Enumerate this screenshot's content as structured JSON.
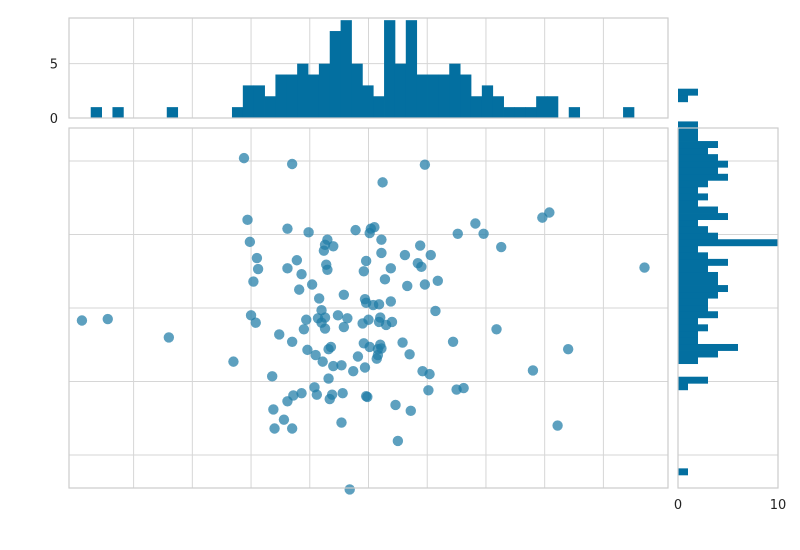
{
  "chart_data": {
    "type": "scatter",
    "title": "",
    "xlabel": "",
    "ylabel": "",
    "grid": true,
    "marginal_histograms": true,
    "colors": {
      "points": "#1f7ba6",
      "bars": "#036fa0",
      "grid": "#d6d6d6",
      "frame": "#cccccc"
    },
    "xlim": [
      -2.55,
      2.55
    ],
    "ylim": [
      -2.45,
      2.45
    ],
    "xticks": [
      -2.0,
      -1.5,
      -1.0,
      -0.5,
      0.0,
      0.5,
      1.0,
      1.5,
      2.0
    ],
    "yticks": [
      -2.0,
      -1.0,
      0.0,
      1.0,
      2.0
    ],
    "points": [
      [
        -2.44,
        -0.17
      ],
      [
        -2.22,
        -0.15
      ],
      [
        -1.7,
        -0.4
      ],
      [
        -1.15,
        -0.73
      ],
      [
        -1.06,
        2.04
      ],
      [
        -1.03,
        1.2
      ],
      [
        -1.01,
        0.9
      ],
      [
        -0.95,
        0.68
      ],
      [
        -0.94,
        0.53
      ],
      [
        -0.98,
        0.36
      ],
      [
        -1.0,
        -0.1
      ],
      [
        -0.96,
        -0.2
      ],
      [
        -0.82,
        -0.93
      ],
      [
        -0.81,
        -1.38
      ],
      [
        -0.8,
        -1.64
      ],
      [
        -0.76,
        -0.36
      ],
      [
        -0.72,
        -1.52
      ],
      [
        -0.69,
        1.08
      ],
      [
        -0.69,
        0.54
      ],
      [
        -0.69,
        -1.27
      ],
      [
        -0.65,
        1.96
      ],
      [
        -0.65,
        -0.46
      ],
      [
        -0.65,
        -1.64
      ],
      [
        -0.64,
        -1.19
      ],
      [
        -0.61,
        0.65
      ],
      [
        -0.59,
        0.25
      ],
      [
        -0.57,
        0.46
      ],
      [
        -0.57,
        -1.16
      ],
      [
        -0.55,
        -0.29
      ],
      [
        -0.53,
        -0.16
      ],
      [
        -0.52,
        -0.57
      ],
      [
        -0.51,
        1.03
      ],
      [
        -0.48,
        0.32
      ],
      [
        -0.46,
        -1.08
      ],
      [
        -0.45,
        -0.64
      ],
      [
        -0.44,
        -1.18
      ],
      [
        -0.43,
        -0.14
      ],
      [
        -0.42,
        0.13
      ],
      [
        -0.4,
        -0.03
      ],
      [
        -0.4,
        -0.2
      ],
      [
        -0.39,
        -0.73
      ],
      [
        -0.38,
        0.78
      ],
      [
        -0.37,
        0.86
      ],
      [
        -0.37,
        -0.13
      ],
      [
        -0.37,
        -0.28
      ],
      [
        -0.36,
        0.59
      ],
      [
        -0.35,
        0.93
      ],
      [
        -0.35,
        0.52
      ],
      [
        -0.34,
        -0.56
      ],
      [
        -0.34,
        -0.96
      ],
      [
        -0.33,
        -1.24
      ],
      [
        -0.32,
        -0.53
      ],
      [
        -0.31,
        -1.18
      ],
      [
        -0.3,
        -0.79
      ],
      [
        -0.3,
        0.84
      ],
      [
        -0.26,
        -0.1
      ],
      [
        -0.23,
        -1.56
      ],
      [
        -0.23,
        -0.78
      ],
      [
        -0.22,
        -1.16
      ],
      [
        -0.21,
        0.18
      ],
      [
        -0.21,
        -0.26
      ],
      [
        -0.18,
        -0.14
      ],
      [
        -0.16,
        -2.47
      ],
      [
        -0.13,
        -0.86
      ],
      [
        -0.11,
        1.06
      ],
      [
        -0.09,
        -0.66
      ],
      [
        -0.05,
        -0.21
      ],
      [
        -0.04,
        0.5
      ],
      [
        -0.04,
        -0.48
      ],
      [
        -0.03,
        0.12
      ],
      [
        -0.03,
        -0.81
      ],
      [
        -0.02,
        0.64
      ],
      [
        -0.02,
        0.07
      ],
      [
        -0.02,
        -1.2
      ],
      [
        -0.01,
        -1.21
      ],
      [
        0.0,
        -0.16
      ],
      [
        0.01,
        1.02
      ],
      [
        0.01,
        -0.53
      ],
      [
        0.02,
        1.08
      ],
      [
        0.04,
        0.04
      ],
      [
        0.05,
        1.1
      ],
      [
        0.07,
        -0.69
      ],
      [
        0.08,
        -0.64
      ],
      [
        0.08,
        -0.56
      ],
      [
        0.09,
        0.05
      ],
      [
        0.09,
        -0.19
      ],
      [
        0.1,
        -0.13
      ],
      [
        0.1,
        -0.5
      ],
      [
        0.11,
        0.75
      ],
      [
        0.11,
        0.93
      ],
      [
        0.11,
        -0.55
      ],
      [
        0.12,
        1.71
      ],
      [
        0.14,
        0.39
      ],
      [
        0.15,
        -0.23
      ],
      [
        0.19,
        0.09
      ],
      [
        0.19,
        0.54
      ],
      [
        0.2,
        -0.19
      ],
      [
        0.23,
        -1.32
      ],
      [
        0.25,
        -1.81
      ],
      [
        0.29,
        -0.47
      ],
      [
        0.31,
        0.72
      ],
      [
        0.33,
        0.3
      ],
      [
        0.35,
        -0.63
      ],
      [
        0.36,
        -1.4
      ],
      [
        0.42,
        0.61
      ],
      [
        0.44,
        0.85
      ],
      [
        0.45,
        0.56
      ],
      [
        0.46,
        -0.86
      ],
      [
        0.48,
        0.32
      ],
      [
        0.48,
        1.95
      ],
      [
        0.51,
        -1.12
      ],
      [
        0.52,
        -0.9
      ],
      [
        0.53,
        0.72
      ],
      [
        0.57,
        -0.04
      ],
      [
        0.59,
        0.37
      ],
      [
        0.72,
        -0.46
      ],
      [
        0.75,
        -1.11
      ],
      [
        0.76,
        1.01
      ],
      [
        0.81,
        -1.09
      ],
      [
        0.91,
        1.15
      ],
      [
        0.98,
        1.01
      ],
      [
        1.09,
        -0.29
      ],
      [
        1.13,
        0.83
      ],
      [
        1.4,
        -0.85
      ],
      [
        1.48,
        1.23
      ],
      [
        1.54,
        1.3
      ],
      [
        1.61,
        -1.6
      ],
      [
        1.7,
        -0.56
      ],
      [
        2.35,
        0.55
      ]
    ],
    "top_histogram": {
      "yticks": [
        0,
        5
      ],
      "ylim": [
        0,
        9.2
      ],
      "bin_edges_range": [
        -2.55,
        2.55
      ],
      "bin_width": 0.0925,
      "counts": [
        0,
        0,
        1,
        0,
        1,
        0,
        0,
        0,
        0,
        1,
        0,
        0,
        0,
        0,
        0,
        1,
        3,
        3,
        2,
        4,
        4,
        5,
        4,
        5,
        8,
        9,
        5,
        3,
        2,
        9,
        5,
        9,
        4,
        4,
        4,
        5,
        4,
        2,
        3,
        2,
        1,
        1,
        1,
        2,
        2,
        0,
        1,
        0,
        0,
        0,
        0,
        1,
        0,
        0,
        0
      ]
    },
    "right_histogram": {
      "xticks": [
        0,
        10
      ],
      "xlim": [
        0,
        10
      ],
      "bin_edges_range": [
        -2.45,
        2.45
      ],
      "bin_width": 0.0891,
      "counts": [
        0,
        0,
        1,
        0,
        0,
        0,
        0,
        0,
        0,
        0,
        0,
        0,
        0,
        0,
        0,
        1,
        3,
        0,
        0,
        2,
        4,
        6,
        2,
        2,
        3,
        2,
        4,
        3,
        3,
        4,
        5,
        4,
        4,
        3,
        5,
        3,
        2,
        10,
        4,
        3,
        2,
        5,
        4,
        2,
        3,
        2,
        3,
        5,
        4,
        5,
        4,
        3,
        4,
        2,
        2,
        2,
        0,
        0,
        0,
        1,
        2,
        0
      ]
    }
  }
}
